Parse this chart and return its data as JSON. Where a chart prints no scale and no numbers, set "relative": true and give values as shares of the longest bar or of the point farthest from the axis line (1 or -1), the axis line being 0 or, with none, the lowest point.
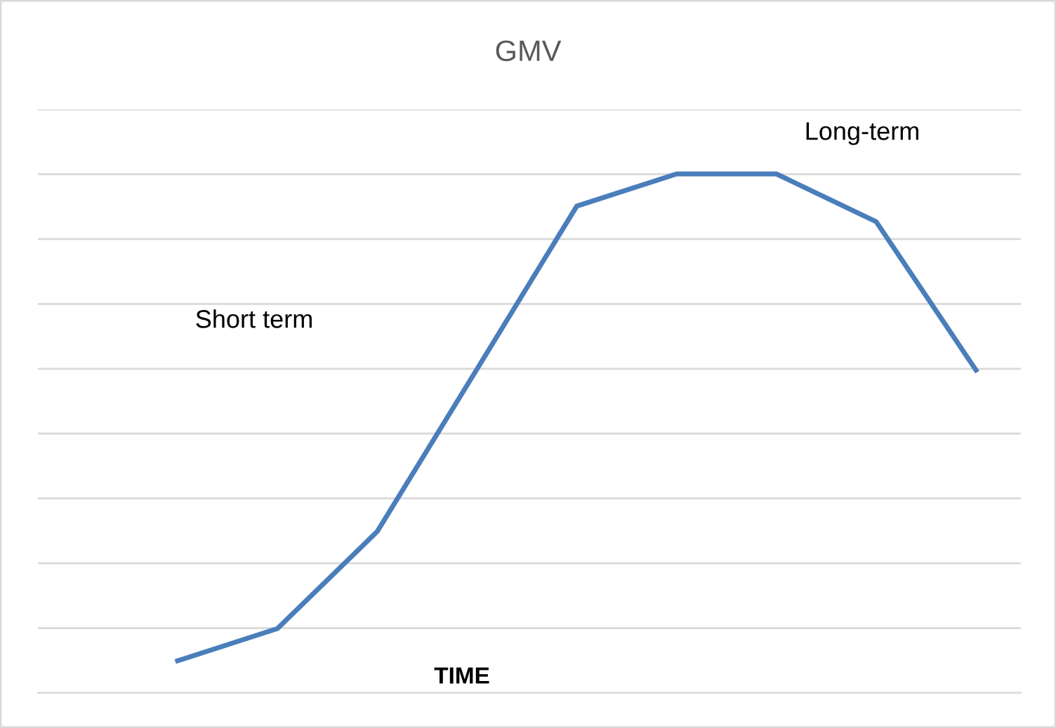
{
  "chart_data": {
    "type": "line",
    "title": "GMV",
    "xlabel": "TIME",
    "relative": true,
    "categories": [
      null,
      null,
      null,
      null,
      null,
      null,
      null,
      null,
      null
    ],
    "series": [
      {
        "color": "#4a7ebb",
        "values": [
          0.062,
          0.124,
          0.311,
          0.624,
          0.938,
          1,
          1,
          0.908,
          0.622
        ]
      }
    ],
    "annotations": [
      "Short term",
      "Long-term"
    ],
    "grid": "y",
    "legend": false,
    "marker": "none",
    "line_style": "solid"
  }
}
